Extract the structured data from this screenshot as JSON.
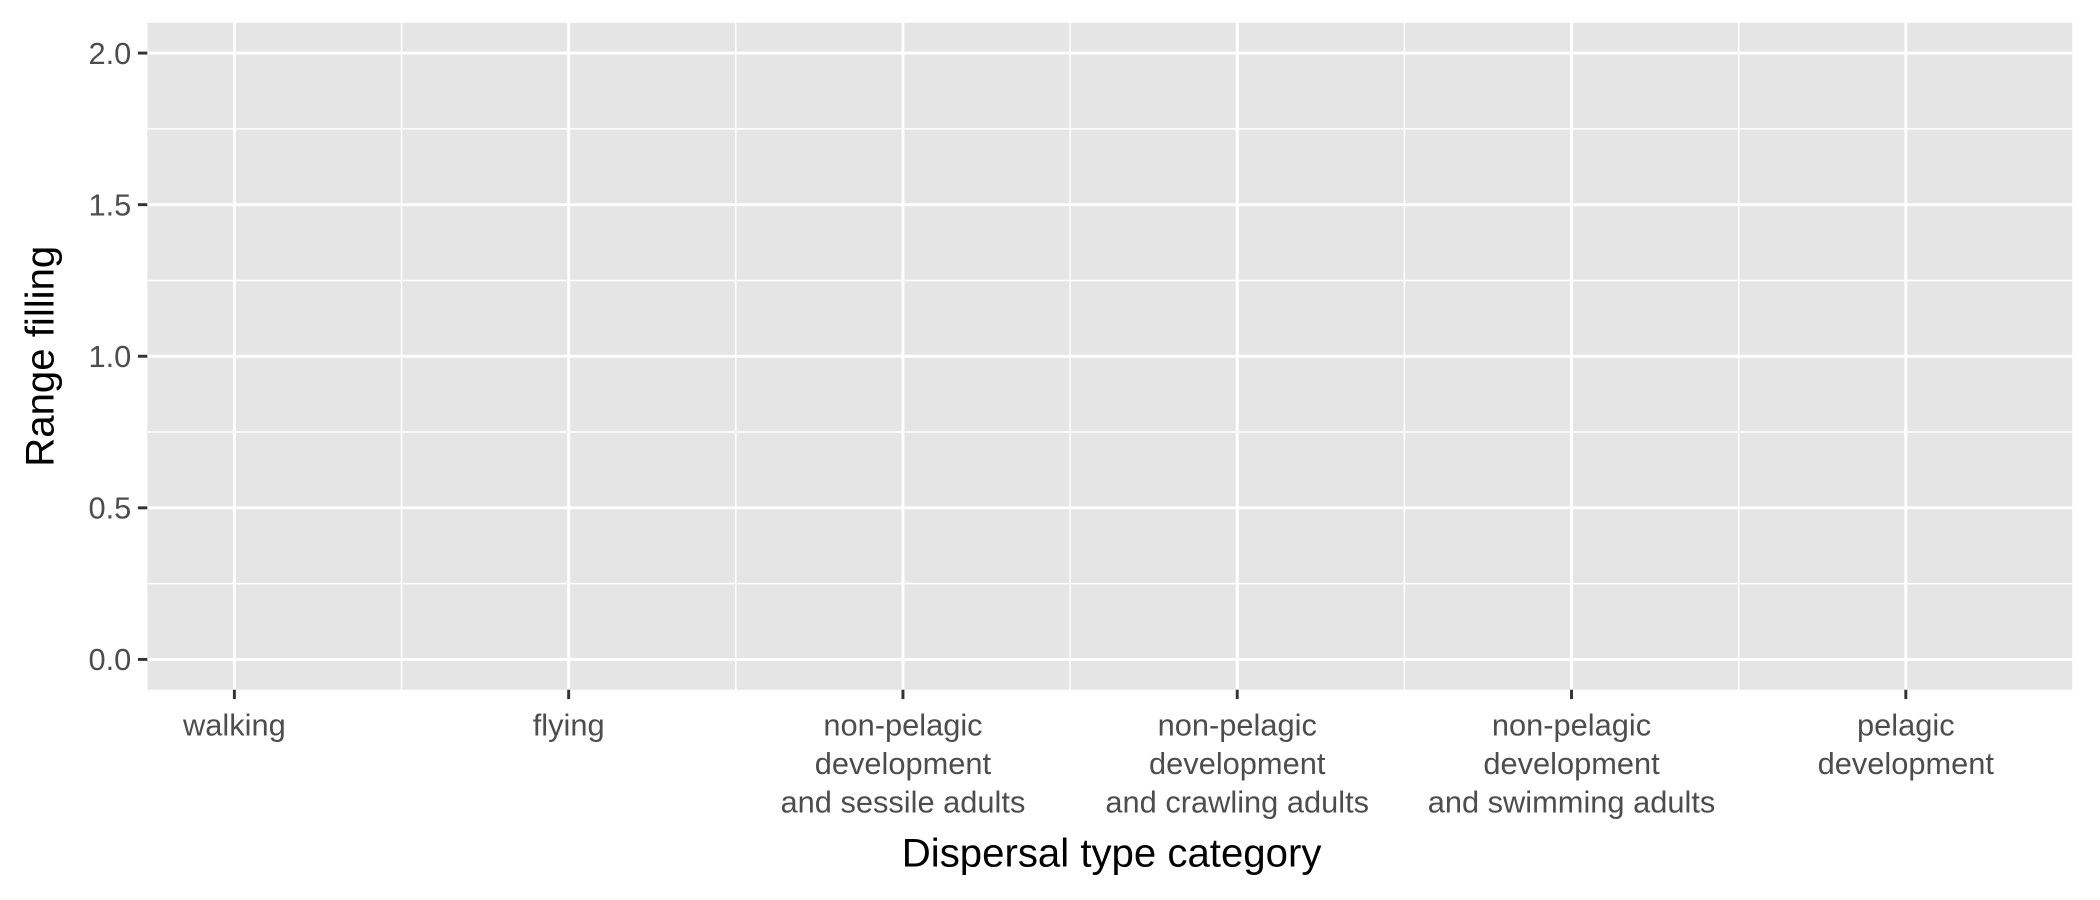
{
  "chart_data": {
    "type": "bar",
    "x_label": "Dispersal type category",
    "y_label": "Range filling",
    "categories": [
      "walking",
      "flying",
      "non-pelagic\ndevelopment\nand sessile adults",
      "non-pelagic\ndevelopment\nand crawling adults",
      "non-pelagic\ndevelopment\nand swimming adults",
      "pelagic\ndevelopment"
    ],
    "ylim": [
      -0.1,
      2.1
    ],
    "yticks": [
      {
        "value": 0,
        "label": "0.0"
      },
      {
        "value": 0.5,
        "label": "0.5"
      },
      {
        "value": 1,
        "label": "1.0"
      },
      {
        "value": 1.5,
        "label": "1.5"
      },
      {
        "value": 2,
        "label": "2.0"
      }
    ],
    "grid": true
  }
}
